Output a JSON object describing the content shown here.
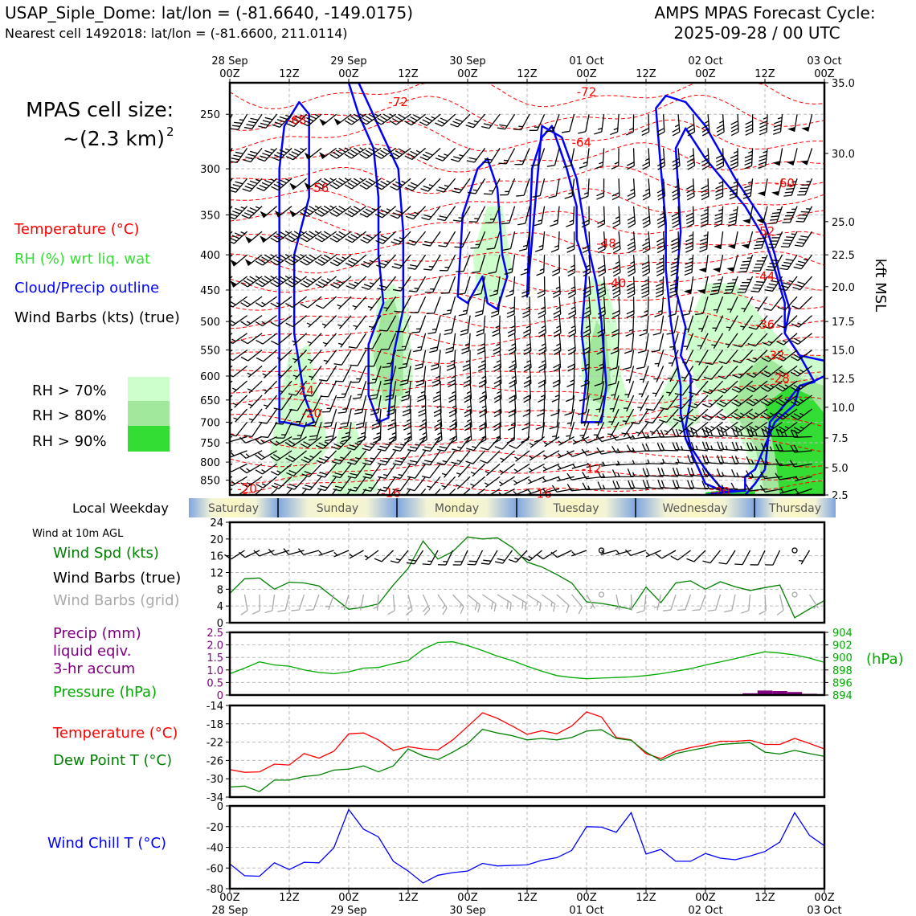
{
  "header": {
    "station": "USAP_Siple_Dome: lat/lon = (-81.6640, -149.0175)",
    "nearest": "Nearest cell 1492018: lat/lon = (-81.6600, 211.0114)",
    "model": "AMPS MPAS Forecast Cycle:",
    "cycle": "2025-09-28 / 00 UTC"
  },
  "legend": {
    "cell_size_line1": "MPAS cell size:",
    "cell_size_line2": "~(2.3 km)",
    "cell_size_sup": "2",
    "temperature": "Temperature (°C)",
    "rh": "RH (%) wrt liq. wat",
    "cloud": "Cloud/Precip outline",
    "barbs": "Wind Barbs (kts) (true)",
    "rh70": "RH > 70%",
    "rh80": "RH > 80%",
    "rh90": "RH > 90%"
  },
  "colors": {
    "temperature": "#ff0000",
    "cloud": "#0000ff",
    "rh70": "#ccffcc",
    "rh80": "#a2e89c",
    "rh90": "#33dd33",
    "wind_speed": "#008000",
    "precip": "#800080",
    "pressure": "#00aa00",
    "dewpoint": "#008000",
    "windchill": "#0000ff",
    "grid_barbs": "#aaaaaa"
  },
  "time_axis": {
    "top_dates": [
      "28 Sep",
      "29 Sep",
      "30 Sep",
      "01 Oct",
      "02 Oct",
      "03 Oct"
    ],
    "hour_labels": [
      "00Z",
      "12Z",
      "00Z",
      "12Z",
      "00Z",
      "12Z",
      "00Z",
      "12Z",
      "00Z",
      "12Z",
      "00Z"
    ]
  },
  "weekday_strip": {
    "label": "Local Weekday",
    "days": [
      "Saturday",
      "Sunday",
      "Monday",
      "Tuesday",
      "Wednesday",
      "Thursday"
    ]
  },
  "panels": {
    "wind": {
      "title": "Wind at 10m AGL",
      "l1": "Wind Spd (kts)",
      "l2": "Wind Barbs (true)",
      "l3": "Wind Barbs (grid)"
    },
    "precip": {
      "l1": "Precip (mm)",
      "l2": "liquid eqiv.",
      "l3": "3-hr accum",
      "l4": "Pressure (hPa)",
      "right_unit": "(hPa)"
    },
    "temp": {
      "l1": "Temperature (°C)",
      "l2": "Dew Point T (°C)"
    },
    "chill": {
      "l1": "Wind Chill T (°C)"
    }
  },
  "chart_data": [
    {
      "type": "heatmap",
      "name": "time-height cross section",
      "x_unit": "hours since 2025-09-28 00Z",
      "xlim": [
        0,
        120
      ],
      "ylabel_right": "kft MSL",
      "ylim_hpa": [
        893,
        225
      ],
      "left_ticks": [
        250,
        300,
        350,
        400,
        450,
        500,
        550,
        600,
        650,
        700,
        750,
        800,
        850
      ],
      "right_ticks": [
        "35.0",
        "30.0",
        "25.0",
        "22.5",
        "20.0",
        "17.5",
        "15.0",
        "12.5",
        "10.0",
        "7.5",
        "5.0",
        "2.5"
      ],
      "right_tick_hpa": [
        225,
        285,
        358,
        400,
        445,
        500,
        550,
        605,
        666,
        738,
        815,
        898
      ],
      "temperature_labels": [
        {
          "t": 13.5,
          "p": 255,
          "v": "-68"
        },
        {
          "t": 34,
          "p": 240,
          "v": "-72"
        },
        {
          "t": 72,
          "p": 232,
          "v": "-72"
        },
        {
          "t": 18,
          "p": 320,
          "v": "-56"
        },
        {
          "t": 71,
          "p": 275,
          "v": "-64"
        },
        {
          "t": 112,
          "p": 315,
          "v": "-60"
        },
        {
          "t": 108,
          "p": 370,
          "v": "-52"
        },
        {
          "t": 76,
          "p": 385,
          "v": "-48"
        },
        {
          "t": 108,
          "p": 430,
          "v": "-44"
        },
        {
          "t": 78,
          "p": 440,
          "v": "-40"
        },
        {
          "t": 108,
          "p": 505,
          "v": "-36"
        },
        {
          "t": 110,
          "p": 560,
          "v": "-32"
        },
        {
          "t": 111,
          "p": 605,
          "v": "-28"
        },
        {
          "t": 15,
          "p": 630,
          "v": "-24"
        },
        {
          "t": 16.5,
          "p": 680,
          "v": "-20"
        },
        {
          "t": 73,
          "p": 818,
          "v": "-12"
        },
        {
          "t": 3.5,
          "p": 875,
          "v": "-20"
        },
        {
          "t": 32.5,
          "p": 887,
          "v": "-16"
        },
        {
          "t": 63,
          "p": 890,
          "v": "-16"
        },
        {
          "t": 99,
          "p": 883,
          "v": "-20"
        }
      ]
    },
    {
      "type": "line",
      "name": "wind speed 10m",
      "ylim": [
        0,
        24
      ],
      "yticks": [
        0,
        4,
        8,
        12,
        16,
        20,
        24
      ],
      "x": [
        0,
        3,
        6,
        9,
        12,
        15,
        18,
        21,
        24,
        27,
        30,
        33,
        36,
        39,
        42,
        45,
        48,
        51,
        54,
        57,
        60,
        63,
        66,
        69,
        72,
        75,
        78,
        81,
        84,
        87,
        90,
        93,
        96,
        99,
        102,
        105,
        108,
        111,
        114,
        117,
        120
      ],
      "series": [
        {
          "values": [
            7,
            10.5,
            10.7,
            8,
            9.7,
            9.5,
            8.8,
            6,
            3.2,
            3.7,
            4.5,
            9,
            13,
            19.5,
            15.2,
            17,
            20.5,
            20,
            20.3,
            18,
            14.5,
            13.3,
            11.5,
            9.5,
            5,
            4.6,
            4,
            3.2,
            8.5,
            4.8,
            9.5,
            10,
            8,
            9.8,
            8.6,
            7.7,
            8.4,
            9,
            1.2,
            3.3,
            5.3
          ]
        }
      ]
    },
    {
      "type": "bar",
      "name": "3-hr precip and pressure",
      "ylim_precip": [
        0,
        2.5
      ],
      "yticks_precip": [
        0,
        0.5,
        1.0,
        1.5,
        2.0,
        2.5
      ],
      "ylim_pressure": [
        894,
        904
      ],
      "yticks_pressure": [
        894,
        896,
        898,
        900,
        902,
        904
      ],
      "precip_x": [
        105,
        108,
        111,
        114,
        117
      ],
      "precip_values": [
        0.07,
        0.18,
        0.16,
        0.12,
        0.05
      ],
      "pressure_x": [
        0,
        3,
        6,
        9,
        12,
        15,
        18,
        21,
        24,
        27,
        30,
        33,
        36,
        39,
        42,
        45,
        48,
        51,
        54,
        57,
        60,
        63,
        66,
        69,
        72,
        75,
        78,
        81,
        84,
        87,
        90,
        93,
        96,
        99,
        102,
        105,
        108,
        111,
        114,
        117,
        120
      ],
      "pressure_values": [
        897.4,
        898.3,
        899.3,
        898.8,
        898.6,
        898.0,
        897.6,
        897.4,
        897.7,
        898.3,
        898.4,
        899.0,
        899.5,
        901.3,
        902.4,
        902.5,
        901.9,
        901.1,
        900.2,
        899.5,
        898.6,
        897.8,
        897.1,
        896.8,
        896.6,
        896.7,
        896.8,
        896.9,
        897.1,
        897.4,
        897.8,
        898.2,
        898.8,
        899.3,
        899.8,
        900.4,
        900.9,
        900.7,
        900.4,
        899.9,
        899.2
      ]
    },
    {
      "type": "line",
      "name": "temperature and dew point",
      "ylim": [
        -34,
        -14
      ],
      "yticks": [
        -34,
        -30,
        -26,
        -22,
        -18,
        -14
      ],
      "x": [
        0,
        3,
        6,
        9,
        12,
        15,
        18,
        21,
        24,
        27,
        30,
        33,
        36,
        39,
        42,
        45,
        48,
        51,
        54,
        57,
        60,
        63,
        66,
        69,
        72,
        75,
        78,
        81,
        84,
        87,
        90,
        93,
        96,
        99,
        102,
        105,
        108,
        111,
        114,
        117,
        120
      ],
      "series": [
        {
          "name": "Temperature (°C)",
          "values": [
            -28,
            -28.6,
            -28.5,
            -26.8,
            -27,
            -24.5,
            -25.5,
            -24,
            -20.2,
            -20,
            -21.5,
            -23.8,
            -23,
            -23.5,
            -23.7,
            -21.5,
            -18.6,
            -15.6,
            -16.8,
            -18.5,
            -20.3,
            -19.5,
            -20.2,
            -18.5,
            -15.4,
            -16.5,
            -21,
            -21.5,
            -24.5,
            -25.6,
            -24,
            -23.2,
            -22.6,
            -21.8,
            -21.8,
            -21.6,
            -22.5,
            -22.5,
            -21.2,
            -22.3,
            -23.5
          ]
        },
        {
          "name": "Dew Point T (°C)",
          "values": [
            -31.8,
            -31.6,
            -32.8,
            -30.3,
            -30.3,
            -29.5,
            -29.2,
            -28.1,
            -27.9,
            -27.2,
            -28.5,
            -27.2,
            -23.5,
            -25,
            -25.8,
            -24.2,
            -22.3,
            -19.2,
            -20,
            -20.6,
            -21.5,
            -21.2,
            -21.5,
            -21,
            -19.6,
            -19.3,
            -21.2,
            -21.6,
            -24.2,
            -26,
            -24.5,
            -23.8,
            -23.2,
            -22.5,
            -22.3,
            -22.1,
            -24.2,
            -24.6,
            -23.8,
            -24.5,
            -25.1
          ]
        }
      ]
    },
    {
      "type": "line",
      "name": "wind chill",
      "ylim": [
        -80,
        0
      ],
      "yticks": [
        -80,
        -60,
        -40,
        -20,
        0
      ],
      "x": [
        0,
        3,
        6,
        9,
        12,
        15,
        18,
        21,
        24,
        27,
        30,
        33,
        36,
        39,
        42,
        45,
        48,
        51,
        54,
        57,
        60,
        63,
        66,
        69,
        72,
        75,
        78,
        81,
        84,
        87,
        90,
        93,
        96,
        99,
        102,
        105,
        108,
        111,
        114,
        117,
        120
      ],
      "series": [
        {
          "values": [
            -56,
            -67.5,
            -68,
            -55,
            -61.5,
            -54.5,
            -55,
            -40.5,
            -3.5,
            -22.5,
            -30,
            -53.5,
            -63,
            -74.5,
            -67,
            -64.5,
            -63,
            -55.5,
            -58,
            -57.5,
            -57,
            -52.5,
            -50,
            -43,
            -20,
            -20.5,
            -25.5,
            -6.5,
            -46.5,
            -42,
            -53.5,
            -53.5,
            -46,
            -50.5,
            -52,
            -48.5,
            -44,
            -35,
            -6.5,
            -28.5,
            -38.5
          ]
        }
      ]
    }
  ]
}
